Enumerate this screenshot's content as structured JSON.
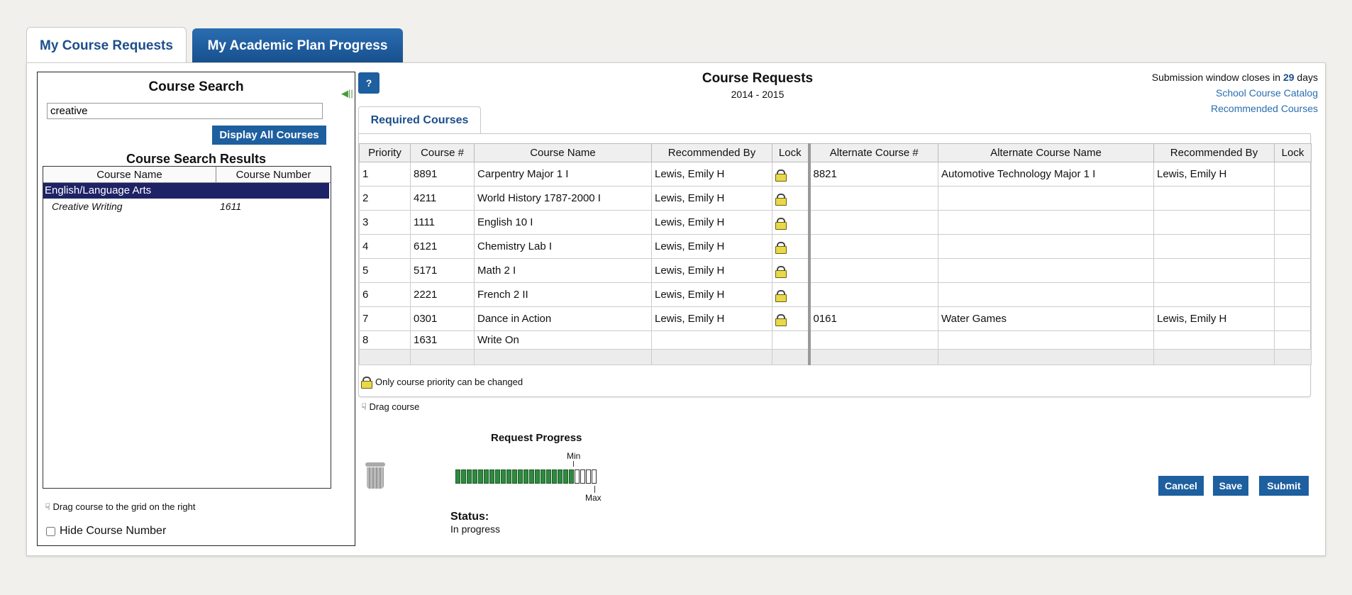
{
  "tabs": [
    {
      "label": "My Course Requests"
    },
    {
      "label": "My Academic Plan Progress"
    }
  ],
  "search": {
    "title": "Course Search",
    "value": "creative",
    "display_all_label": "Display All Courses",
    "results_title": "Course Search Results",
    "columns": [
      "Course Name",
      "Course Number"
    ],
    "group": "English/Language Arts",
    "results": [
      {
        "name": "Creative Writing",
        "number": "1611"
      }
    ],
    "drag_note": "Drag course to the grid on the right",
    "hide_label": "Hide Course Number"
  },
  "requests": {
    "help_label": "?",
    "title": "Course Requests",
    "year": "2014 - 2015",
    "submission_prefix": "Submission window closes in",
    "submission_days": "29",
    "submission_suffix": "days",
    "catalog_link": "School Course Catalog",
    "recommended_link": "Recommended Courses",
    "tab_label": "Required Courses",
    "columns": [
      "Priority",
      "Course #",
      "Course Name",
      "Recommended By",
      "Lock",
      "Alternate Course #",
      "Alternate Course Name",
      "Recommended By",
      "Lock"
    ],
    "rows": [
      {
        "priority": "1",
        "num": "8891",
        "name": "Carpentry Major 1 I",
        "rec": "Lewis, Emily H",
        "lock": true,
        "alt_num": "8821",
        "alt_name": "Automotive Technology Major 1 I",
        "alt_rec": "Lewis, Emily H"
      },
      {
        "priority": "2",
        "num": "4211",
        "name": "World History 1787-2000 I",
        "rec": "Lewis, Emily H",
        "lock": true,
        "alt_num": "",
        "alt_name": "",
        "alt_rec": ""
      },
      {
        "priority": "3",
        "num": "1111",
        "name": "English 10 I",
        "rec": "Lewis, Emily H",
        "lock": true,
        "alt_num": "",
        "alt_name": "",
        "alt_rec": ""
      },
      {
        "priority": "4",
        "num": "6121",
        "name": "Chemistry Lab I",
        "rec": "Lewis, Emily H",
        "lock": true,
        "alt_num": "",
        "alt_name": "",
        "alt_rec": ""
      },
      {
        "priority": "5",
        "num": "5171",
        "name": "Math 2 I",
        "rec": "Lewis, Emily H",
        "lock": true,
        "alt_num": "",
        "alt_name": "",
        "alt_rec": ""
      },
      {
        "priority": "6",
        "num": "2221",
        "name": "French 2 II",
        "rec": "Lewis, Emily H",
        "lock": true,
        "alt_num": "",
        "alt_name": "",
        "alt_rec": ""
      },
      {
        "priority": "7",
        "num": "0301",
        "name": "Dance in Action",
        "rec": "Lewis, Emily H",
        "lock": true,
        "alt_num": "0161",
        "alt_name": "Water Games",
        "alt_rec": "Lewis, Emily H"
      },
      {
        "priority": "8",
        "num": "1631",
        "name": "Write On",
        "rec": "",
        "lock": false,
        "alt_num": "",
        "alt_name": "",
        "alt_rec": ""
      }
    ],
    "lock_note": "Only course priority can be changed",
    "drag_note": "Drag course"
  },
  "progress": {
    "title": "Request Progress",
    "min_label": "Min",
    "max_label": "Max",
    "filled": 21,
    "total": 25,
    "status_label": "Status:",
    "status_value": "In progress"
  },
  "actions": {
    "cancel": "Cancel",
    "save": "Save",
    "submit": "Submit"
  },
  "colors": {
    "accent": "#1d5f9f",
    "progress_fill": "#2e8a3f",
    "group_row": "#1e2266",
    "lock": "#e8d84a"
  }
}
